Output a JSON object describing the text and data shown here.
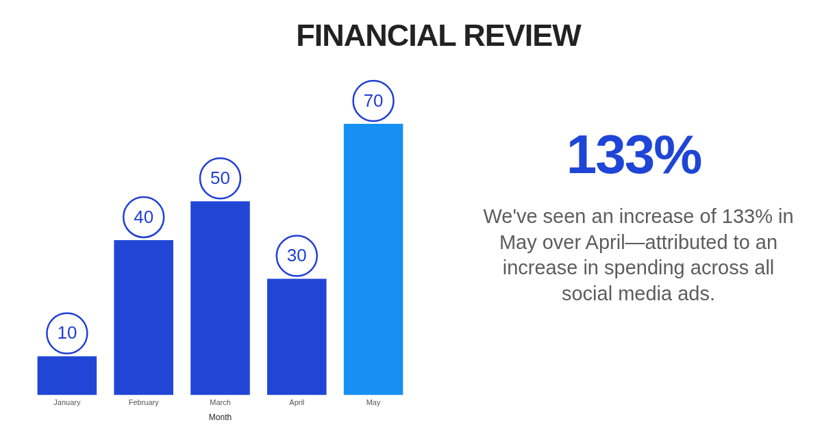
{
  "chart_data": {
    "type": "bar",
    "title": "FINANCIAL REVIEW",
    "xlabel": "Month",
    "categories": [
      "January",
      "February",
      "March",
      "April",
      "May"
    ],
    "values": [
      10,
      40,
      50,
      30,
      70
    ],
    "colors": [
      "#2146d6",
      "#2146d6",
      "#2146d6",
      "#2146d6",
      "#1690f3"
    ],
    "data_labels": true,
    "tick_labels": "x",
    "annotations": [
      "133%",
      "We've seen an increase of 133% in May over April—attributed to an increase in spending across all social media ads."
    ]
  }
}
